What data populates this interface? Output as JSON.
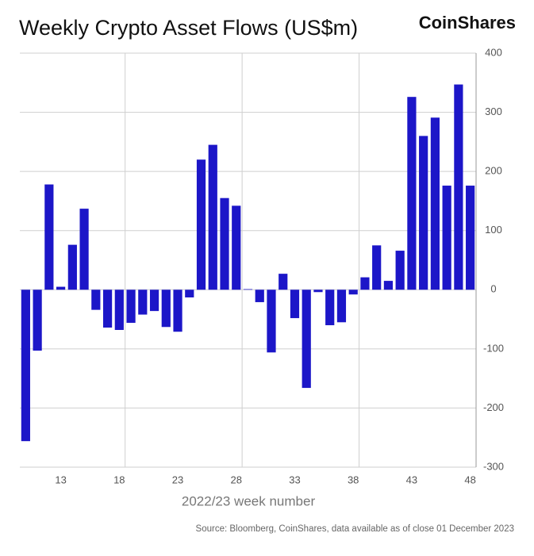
{
  "chart_data": {
    "type": "bar",
    "title": "Weekly Crypto Asset Flows (US$m)",
    "brand": "CoinShares",
    "x_label": "2022/23 week number",
    "source": "Source: Bloomberg, CoinShares, data available as of close 01 December 2023",
    "x": [
      10,
      11,
      12,
      13,
      14,
      15,
      16,
      17,
      18,
      19,
      20,
      21,
      22,
      23,
      24,
      25,
      26,
      27,
      28,
      29,
      30,
      31,
      32,
      33,
      34,
      35,
      36,
      37,
      38,
      39,
      40,
      41,
      42,
      43,
      44,
      45,
      46,
      47,
      48
    ],
    "values": [
      -256,
      -103,
      178,
      5,
      76,
      137,
      -34,
      -64,
      -68,
      -56,
      -42,
      -36,
      -63,
      -71,
      -13,
      220,
      245,
      155,
      142,
      1,
      -21,
      -106,
      27,
      -48,
      -166,
      -4,
      -60,
      -55,
      -8,
      21,
      75,
      15,
      66,
      326,
      260,
      291,
      176,
      347,
      176
    ],
    "color": "#1c16c8",
    "xlim": [
      9.5,
      48.5
    ],
    "xticks": [
      13,
      18,
      23,
      28,
      33,
      38,
      43,
      48
    ],
    "x_gridlines": [
      18.5,
      28.5,
      38.5
    ],
    "ylim": [
      -300,
      400
    ],
    "yticks": [
      -300,
      -200,
      -100,
      0,
      100,
      200,
      300,
      400
    ],
    "grid": true
  }
}
